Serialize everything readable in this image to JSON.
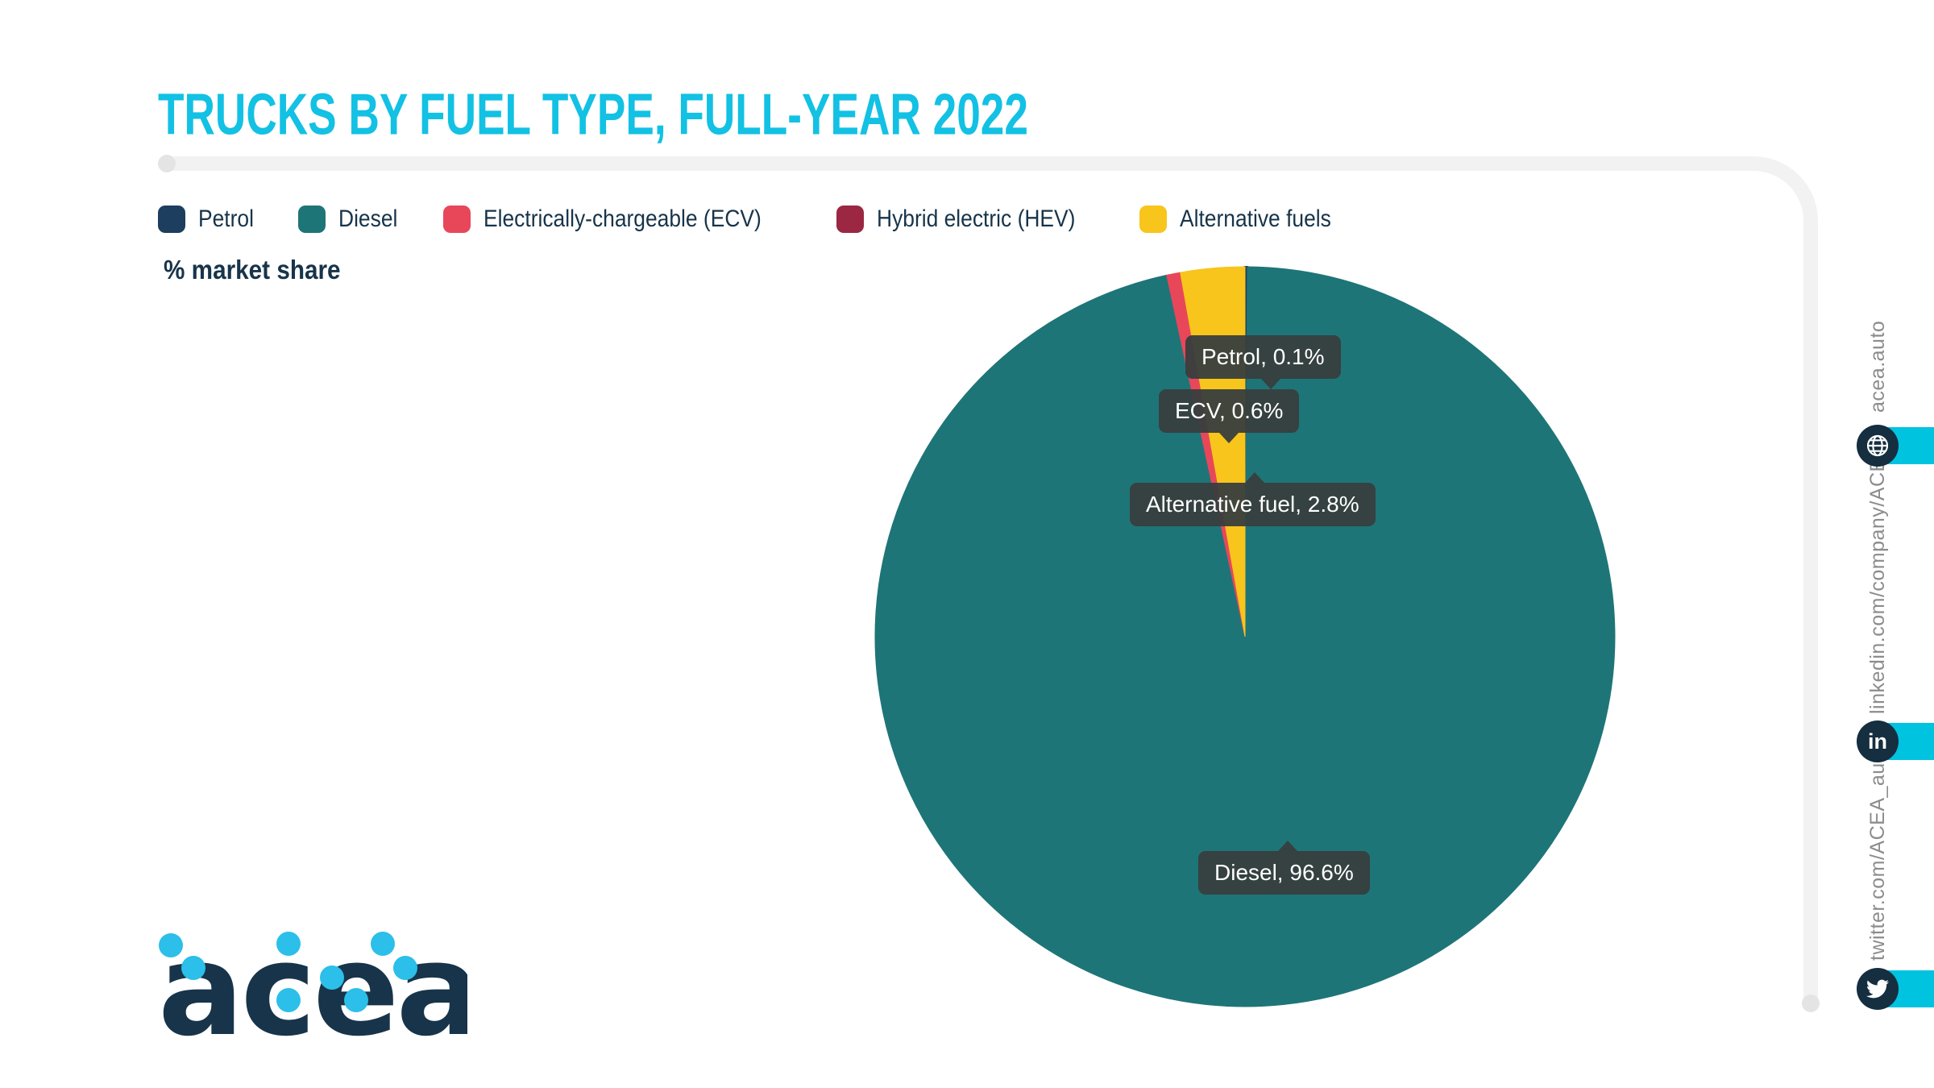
{
  "page": {
    "title": "TRUCKS BY FUEL TYPE, FULL-YEAR 2022",
    "subtitle": "% market share"
  },
  "colors": {
    "accent_cyan": "#12c1e3",
    "navy_text": "#17344a",
    "frame_gray": "#f2f2f2",
    "tooltip_bg": "#383e3e",
    "sidebar_text_gray": "#8c8c8c",
    "strip_cyan": "#00c3e0",
    "icon_circle_navy": "#152e40",
    "logo_dot_cyan": "#2bbfe9"
  },
  "legend": [
    {
      "label": "Petrol",
      "color": "#1d3e5e"
    },
    {
      "label": "Diesel",
      "color": "#1e7578"
    },
    {
      "label": "Electrically-chargeable (ECV)",
      "color": "#e8475a"
    },
    {
      "label": "Hybrid electric (HEV)",
      "color": "#9b2742"
    },
    {
      "label": "Alternative fuels",
      "color": "#f7c51b"
    }
  ],
  "chart_data": {
    "type": "pie",
    "title": "TRUCKS BY FUEL TYPE, FULL-YEAR 2022",
    "unit": "% market share",
    "categories": [
      "Petrol",
      "Diesel",
      "Electrically-chargeable (ECV)",
      "Hybrid electric (HEV)",
      "Alternative fuels"
    ],
    "values": [
      0.1,
      96.6,
      0.6,
      0.0,
      2.8
    ],
    "colors": [
      "#1d3e5e",
      "#1e7578",
      "#e8475a",
      "#9b2742",
      "#f7c51b"
    ],
    "start_angle_deg": 0,
    "direction": "clockwise",
    "legend_position": "top",
    "data_labels": {
      "petrol": "Petrol, 0.1%",
      "ecv": "ECV, 0.6%",
      "alt": "Alternative fuel, 2.8%",
      "diesel": "Diesel, 96.6%"
    }
  },
  "sidebar": {
    "website": {
      "label": "acea.auto",
      "icon": "globe-icon"
    },
    "linkedin": {
      "label": "linkedin.com/company/ACEA/",
      "icon": "linkedin-icon",
      "glyph": "in"
    },
    "twitter": {
      "label": "twitter.com/ACEA_auto",
      "icon": "twitter-icon"
    }
  },
  "logo": {
    "text": "acea"
  }
}
